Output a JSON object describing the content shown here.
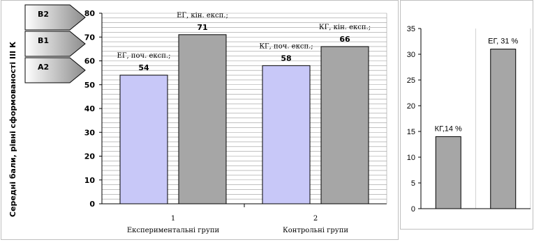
{
  "chart_data": [
    {
      "type": "bar",
      "ylabel": "Середні бали, рівні сформованості ІІІ К",
      "ylim": [
        0,
        80
      ],
      "yticks": [
        0,
        10,
        20,
        30,
        40,
        50,
        60,
        70,
        80
      ],
      "grid": true,
      "groups": [
        {
          "number": "1",
          "name": "Експериментальні групи"
        },
        {
          "number": "2",
          "name": "Контрольні групи"
        }
      ],
      "bars": [
        {
          "group": 0,
          "label": "ЕГ, поч. експ.;",
          "value": 54,
          "color": "#c8c8f8"
        },
        {
          "group": 0,
          "label": "ЕГ, кін. експ.;",
          "value": 71,
          "color": "#a6a6a6"
        },
        {
          "group": 1,
          "label": "КГ, поч. експ.;",
          "value": 58,
          "color": "#c8c8f8"
        },
        {
          "group": 1,
          "label": "КГ, кін. експ.;",
          "value": 66,
          "color": "#a6a6a6"
        }
      ],
      "levels": [
        {
          "label": "В2"
        },
        {
          "label": "В1"
        },
        {
          "label": "А2"
        }
      ]
    },
    {
      "type": "bar",
      "ylim": [
        0,
        35
      ],
      "yticks": [
        0,
        5,
        10,
        15,
        20,
        25,
        30,
        35
      ],
      "bars": [
        {
          "label": "КГ,14 %",
          "value": 14,
          "color": "#a6a6a6"
        },
        {
          "label": "ЕГ, 31 %",
          "value": 31,
          "color": "#a6a6a6"
        }
      ]
    }
  ]
}
